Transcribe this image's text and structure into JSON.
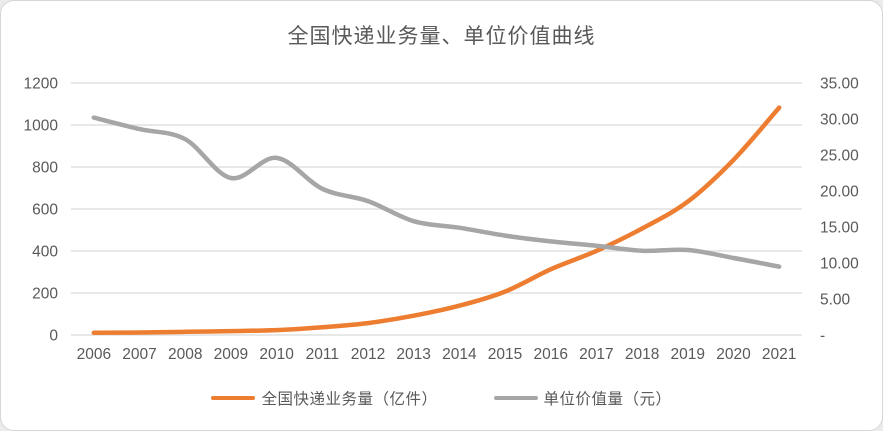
{
  "chart_data": {
    "type": "line",
    "title": "全国快递业务量、单位价值曲线",
    "categories": [
      "2006",
      "2007",
      "2008",
      "2009",
      "2010",
      "2011",
      "2012",
      "2013",
      "2014",
      "2015",
      "2016",
      "2017",
      "2018",
      "2019",
      "2020",
      "2021"
    ],
    "series": [
      {
        "name": "全国快递业务量（亿件）",
        "axis": "left",
        "color": "#ED7D31",
        "values": [
          10.6,
          12.0,
          15.1,
          18.6,
          23.4,
          36.7,
          56.9,
          91.9,
          139.6,
          206.7,
          312.8,
          400.6,
          507.1,
          635.2,
          833.6,
          1083.0
        ]
      },
      {
        "name": "单位价值量（元）",
        "axis": "right",
        "color": "#A6A6A6",
        "values": [
          30.2,
          28.6,
          27.2,
          21.8,
          24.6,
          20.3,
          18.6,
          15.8,
          14.9,
          13.8,
          13.0,
          12.4,
          11.7,
          11.8,
          10.7,
          9.5
        ]
      }
    ],
    "left_axis": {
      "min": 0,
      "max": 1200,
      "tick_labels_top_to_bottom": [
        "1200",
        "1000",
        "800",
        "600",
        "400",
        "200",
        "0"
      ]
    },
    "right_axis": {
      "min": 0,
      "max": 35,
      "tick_labels_top_to_bottom": [
        "35.00",
        "30.00",
        "25.00",
        "20.00",
        "15.00",
        "10.00",
        "5.00",
        "-"
      ]
    },
    "grid": true,
    "gridline_color": "#D9D9D9",
    "legend_position": "bottom",
    "text_color": "#595959"
  }
}
